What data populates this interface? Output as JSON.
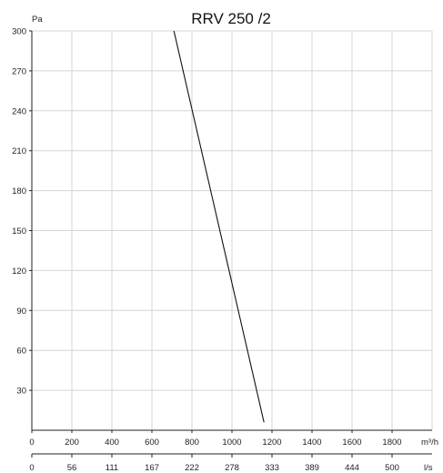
{
  "chart_data": {
    "type": "line",
    "title": "RRV 250 /2",
    "ylabel": "Pa",
    "xlabel": "m³/h",
    "x2label": "l/s",
    "ylim": [
      0,
      300
    ],
    "xlim": [
      0,
      2000
    ],
    "grid": true,
    "y_ticks": [
      30,
      60,
      90,
      120,
      150,
      180,
      210,
      240,
      270,
      300
    ],
    "x_ticks": [
      0,
      200,
      400,
      600,
      800,
      1000,
      1200,
      1400,
      1600,
      1800
    ],
    "x2_ticks": [
      "0",
      "56",
      "111",
      "167",
      "222",
      "278",
      "333",
      "389",
      "444",
      "500"
    ],
    "series": [
      {
        "x": [
          710,
          1160
        ],
        "y": [
          300,
          6
        ]
      }
    ]
  }
}
